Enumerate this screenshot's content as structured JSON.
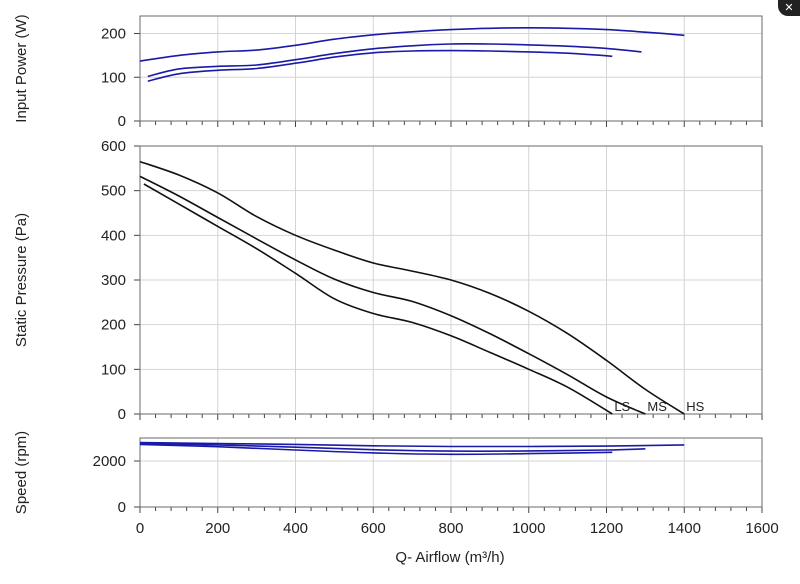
{
  "close_button": {
    "glyph": "✕"
  },
  "chart_data": {
    "type": "line",
    "x_axis": {
      "label": "Q- Airflow (m³/h)",
      "range": [
        0,
        1600
      ],
      "ticks": [
        0,
        200,
        400,
        600,
        800,
        1000,
        1200,
        1400,
        1600
      ]
    },
    "grid": true,
    "panels": [
      {
        "ylabel": "Input Power (W)",
        "ylim": [
          0,
          240
        ],
        "yticks": [
          0,
          100,
          200
        ],
        "line_color": "#1a1aa8",
        "series": [
          {
            "x": [
              0,
              100,
              200,
              300,
              400,
              500,
              600,
              700,
              800,
              900,
              1000,
              1100,
              1200,
              1300,
              1400
            ],
            "y": [
              137,
              150,
              158,
              162,
              173,
              187,
              197,
              204,
              209,
              212,
              213,
              212,
              209,
              203,
              196
            ]
          },
          {
            "x": [
              20,
              100,
              200,
              300,
              400,
              500,
              600,
              700,
              800,
              900,
              1000,
              1100,
              1200,
              1290
            ],
            "y": [
              102,
              119,
              125,
              128,
              140,
              154,
              165,
              172,
              176,
              176,
              174,
              171,
              166,
              158
            ]
          },
          {
            "x": [
              20,
              100,
              200,
              300,
              400,
              500,
              600,
              700,
              800,
              900,
              1000,
              1100,
              1215
            ],
            "y": [
              91,
              108,
              116,
              120,
              132,
              146,
              156,
              160,
              161,
              160,
              158,
              155,
              148
            ]
          }
        ]
      },
      {
        "ylabel": "Static Pressure (Pa)",
        "ylim": [
          0,
          600
        ],
        "yticks": [
          0,
          100,
          200,
          300,
          400,
          500,
          600
        ],
        "line_color": "#111111",
        "series": [
          {
            "name": "HS",
            "x": [
              0,
              100,
              200,
              300,
              400,
              500,
              600,
              700,
              800,
              900,
              1000,
              1100,
              1200,
              1300,
              1400
            ],
            "y": [
              565,
              535,
              495,
              442,
              400,
              367,
              338,
              320,
              300,
              270,
              230,
              180,
              120,
              55,
              0
            ]
          },
          {
            "name": "MS",
            "x": [
              0,
              100,
              200,
              300,
              400,
              500,
              600,
              700,
              800,
              900,
              1000,
              1100,
              1200,
              1300
            ],
            "y": [
              532,
              488,
              440,
              392,
              345,
              302,
              272,
              252,
              220,
              180,
              135,
              88,
              38,
              0
            ]
          },
          {
            "name": "LS",
            "x": [
              10,
              100,
              200,
              300,
              400,
              500,
              600,
              700,
              800,
              900,
              1000,
              1100,
              1215
            ],
            "y": [
              515,
              470,
              420,
              370,
              315,
              258,
              225,
              205,
              175,
              138,
              100,
              60,
              0
            ]
          }
        ]
      },
      {
        "ylabel": "Speed (rpm)",
        "ylim": [
          0,
          3000
        ],
        "yticks": [
          0,
          2000
        ],
        "line_color": "#1a1aa8",
        "series": [
          {
            "x": [
              0,
              200,
              400,
              600,
              800,
              1000,
              1200,
              1400
            ],
            "y": [
              2800,
              2760,
              2720,
              2660,
              2630,
              2630,
              2650,
              2700
            ]
          },
          {
            "x": [
              0,
              200,
              400,
              600,
              800,
              1000,
              1200,
              1300
            ],
            "y": [
              2760,
              2700,
              2600,
              2490,
              2430,
              2440,
              2480,
              2530
            ]
          },
          {
            "x": [
              0,
              200,
              400,
              600,
              800,
              1000,
              1215
            ],
            "y": [
              2720,
              2620,
              2480,
              2350,
              2290,
              2320,
              2380
            ]
          }
        ]
      }
    ]
  }
}
